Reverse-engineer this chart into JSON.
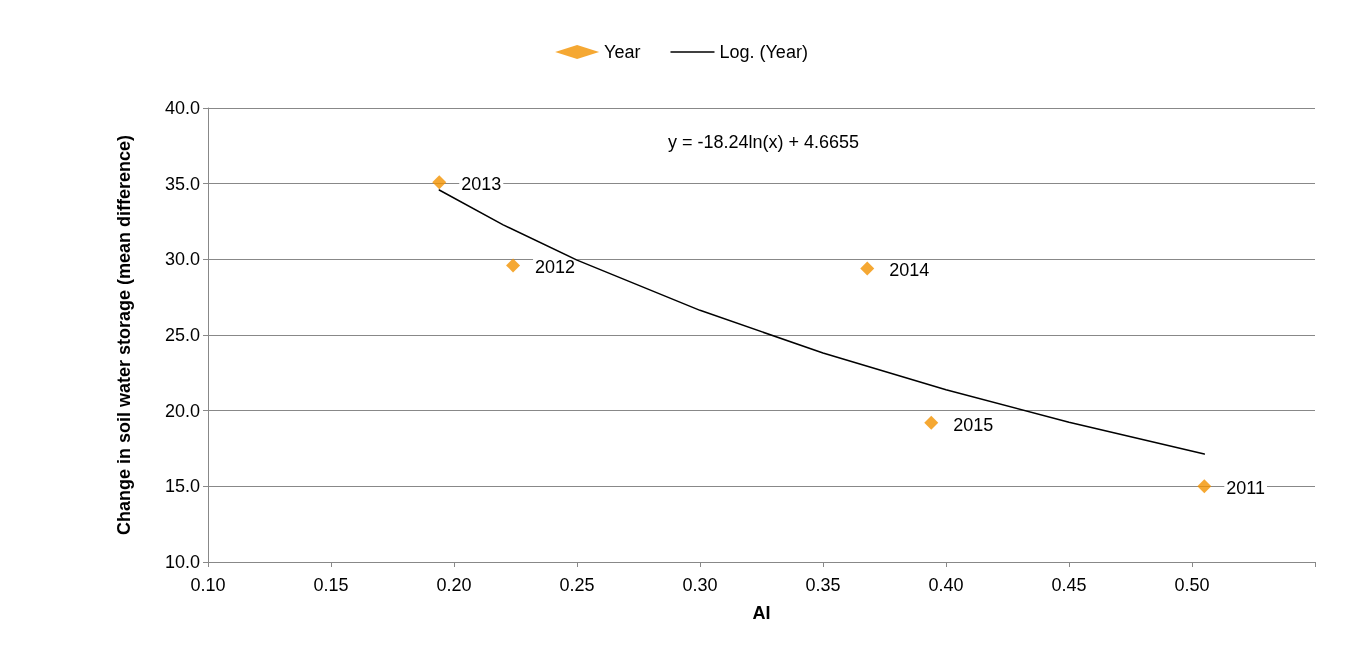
{
  "chart_data": {
    "type": "scatter",
    "xlabel": "AI",
    "ylabel": "Change in soil water storage (mean difference)",
    "xlim": [
      0.1,
      0.55
    ],
    "xticks": [
      {
        "value": 0.1,
        "label": "0.10"
      },
      {
        "value": 0.15,
        "label": "0.15"
      },
      {
        "value": 0.2,
        "label": "0.20"
      },
      {
        "value": 0.25,
        "label": "0.25"
      },
      {
        "value": 0.3,
        "label": "0.30"
      },
      {
        "value": 0.35,
        "label": "0.35"
      },
      {
        "value": 0.4,
        "label": "0.40"
      },
      {
        "value": 0.45,
        "label": "0.45"
      },
      {
        "value": 0.5,
        "label": "0.50"
      },
      {
        "value": 0.55,
        "label": null
      }
    ],
    "ylim": [
      10,
      40
    ],
    "yticks": [
      {
        "value": 10,
        "label": "10.0"
      },
      {
        "value": 15,
        "label": "15.0"
      },
      {
        "value": 20,
        "label": "20.0"
      },
      {
        "value": 25,
        "label": "25.0"
      },
      {
        "value": 30,
        "label": "30.0"
      },
      {
        "value": 35,
        "label": "35.0"
      },
      {
        "value": 40,
        "label": "40.0"
      }
    ],
    "grid": "y",
    "legend": "top",
    "annotations": [
      "y = -18.24ln(x) + 4.6655",
      {
        "text": "2013",
        "x": 0.194,
        "y": 35.1
      },
      {
        "text": "2012",
        "x": 0.224,
        "y": 29.6
      },
      {
        "text": "2014",
        "x": 0.368,
        "y": 29.4
      },
      {
        "text": "2015",
        "x": 0.394,
        "y": 19.2
      },
      {
        "text": "2011",
        "x": 0.505,
        "y": 15.0
      }
    ],
    "series": [
      {
        "name": "Year",
        "marker": "diamond",
        "color": "#f39200",
        "x": [
          0.194,
          0.224,
          0.368,
          0.394,
          0.505
        ],
        "values": [
          35.1,
          29.6,
          29.4,
          19.2,
          15.0
        ]
      },
      {
        "name": "Log. (Year)",
        "type": "line",
        "marker": "none",
        "line_style": "solid",
        "color": "#000000",
        "x": [
          0.194,
          0.22,
          0.25,
          0.3,
          0.35,
          0.4,
          0.45,
          0.505
        ],
        "values": [
          34.58,
          32.28,
          29.95,
          26.63,
          23.81,
          21.38,
          19.23,
          17.13
        ]
      }
    ]
  }
}
